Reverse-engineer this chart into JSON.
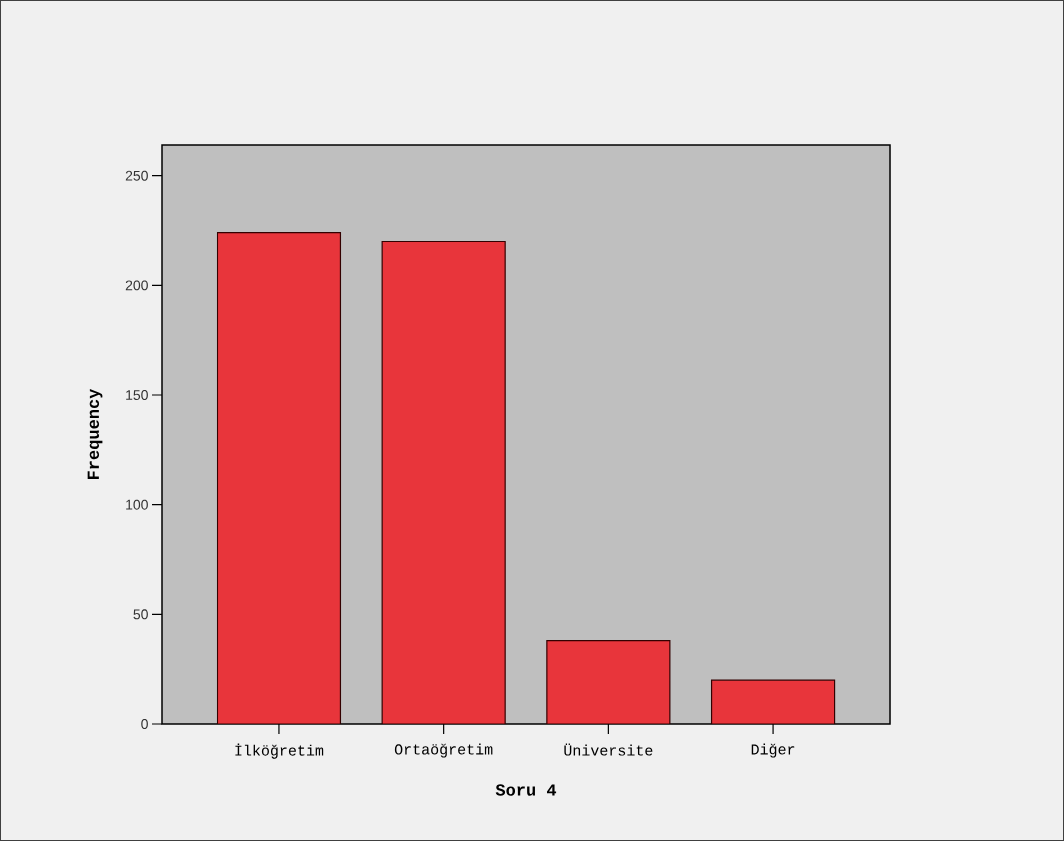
{
  "chart_data": {
    "type": "bar",
    "xlabel": "Soru 4",
    "ylabel": "Frequency",
    "categories": [
      "İlköğretim",
      "Ortaöğretim",
      "Üniversite",
      "Diğer"
    ],
    "values": [
      224,
      220,
      38,
      20
    ],
    "color": "#e8353b",
    "ylim": [
      0,
      264
    ],
    "yticks": [
      0,
      50,
      100,
      150,
      200,
      250
    ]
  }
}
